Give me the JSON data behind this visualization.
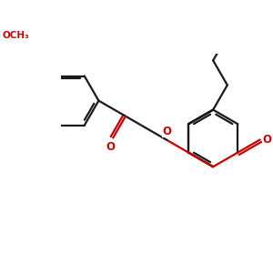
{
  "bg_color": "#ffffff",
  "bond_color": "#1a1a1a",
  "heteroatom_color": "#cc0000",
  "lw": 1.6,
  "fs": 8.5,
  "figsize": [
    3.0,
    3.0
  ],
  "dpi": 100,
  "bl": 0.42,
  "xlim": [
    -0.15,
    2.85
  ],
  "ylim": [
    0.2,
    2.8
  ]
}
